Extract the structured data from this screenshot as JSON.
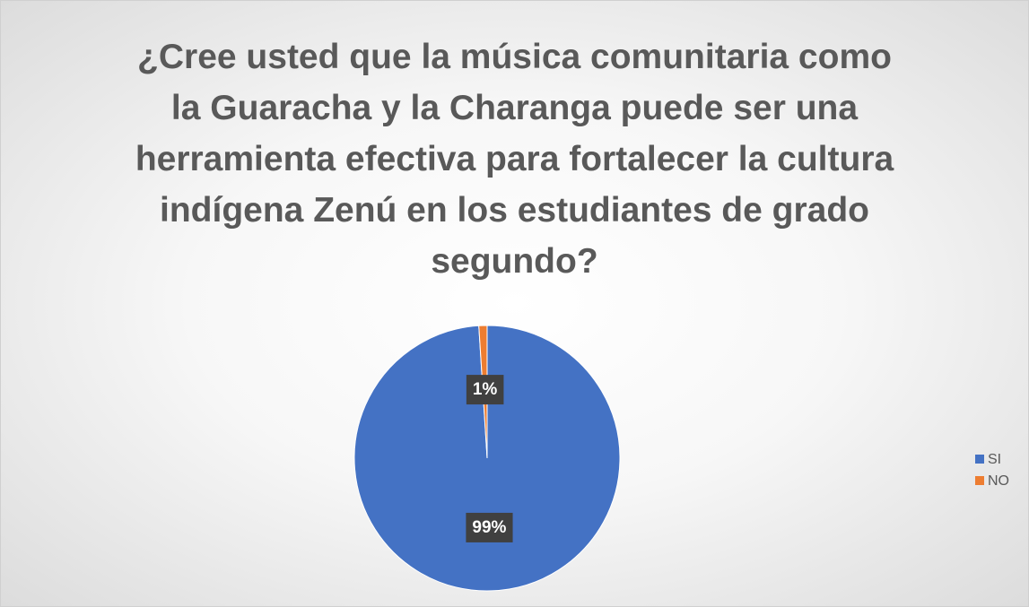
{
  "chart_data": {
    "type": "pie",
    "title": "¿Cree usted que la música comunitaria como la Guaracha y la Charanga puede ser una herramienta efectiva para fortalecer la cultura indígena Zenú en los estudiantes de grado segundo?",
    "categories": [
      "SI",
      "NO"
    ],
    "values": [
      99,
      1
    ],
    "value_labels": [
      "99%",
      "1%"
    ],
    "colors": [
      "#4472c4",
      "#ed7d31"
    ],
    "legend": "right"
  }
}
